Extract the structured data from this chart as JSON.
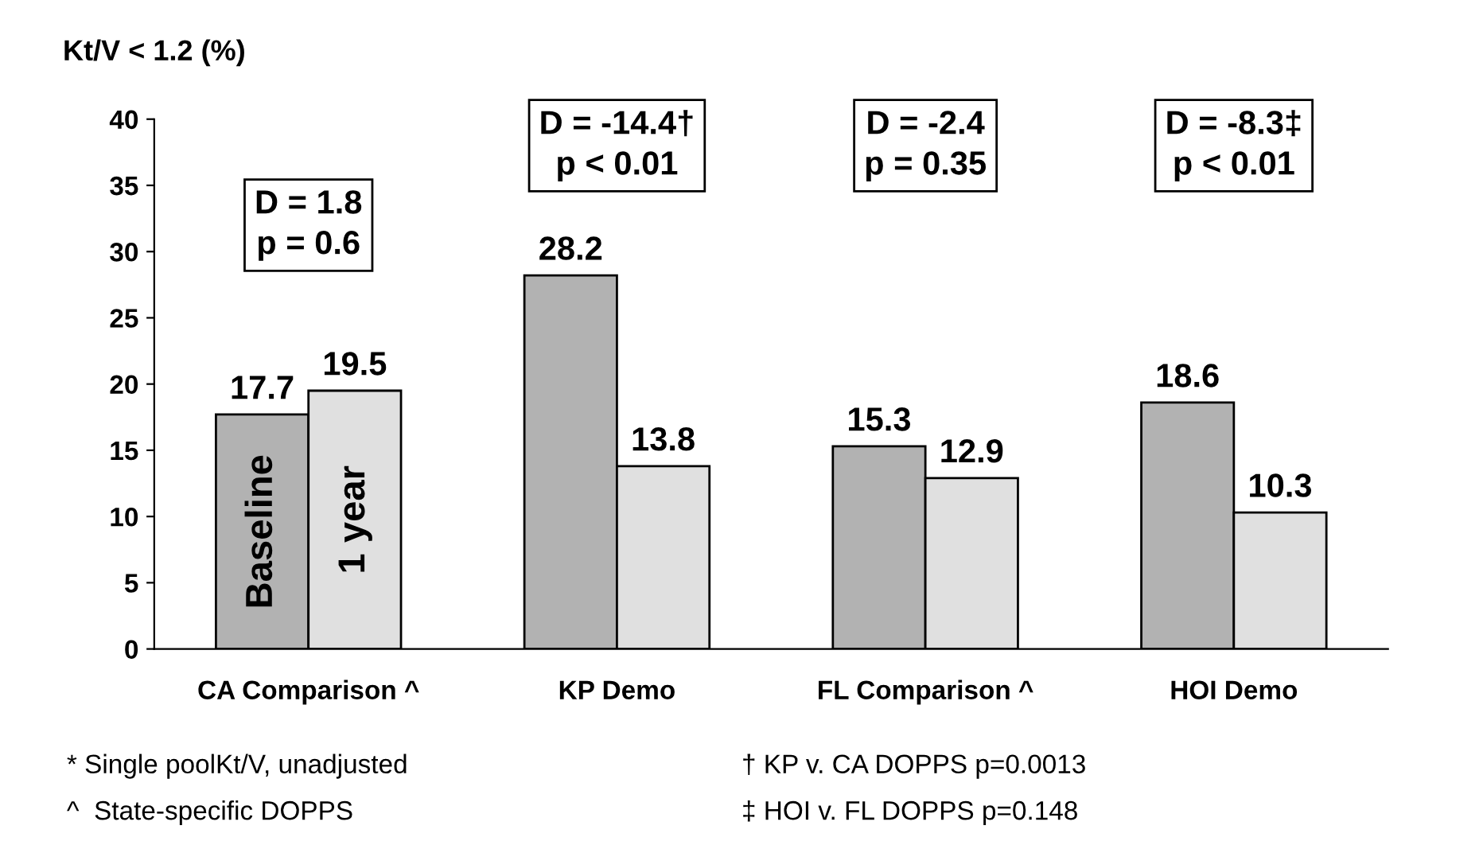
{
  "chart_data": {
    "type": "bar",
    "ylabel": "Kt/V < 1.2 (%)",
    "categories": [
      "CA Comparison ^",
      "KP Demo",
      "FL Comparison ^",
      "HOI Demo"
    ],
    "series": [
      {
        "name": "Baseline",
        "color": "#b2b2b2",
        "values": [
          17.7,
          28.2,
          15.3,
          18.6
        ]
      },
      {
        "name": "1 year",
        "color": "#e0e0e0",
        "values": [
          19.5,
          13.8,
          12.9,
          10.3
        ]
      }
    ],
    "ylim": [
      0,
      40
    ],
    "yticks": [
      0,
      5,
      10,
      15,
      20,
      25,
      30,
      35,
      40
    ],
    "grid": false,
    "legend": false,
    "data_labels": true,
    "annotations": [
      "D = 1.8\np = 0.6",
      "D = -14.4†\np < 0.01",
      "D = -2.4\np = 0.35",
      "D = -8.3‡\np < 0.01",
      "* Single poolKt/V, unadjusted",
      "^  State-specific DOPPS",
      "† KP v. CA DOPPS p=0.0013",
      "‡ HOI v. FL DOPPS p=0.148"
    ]
  }
}
